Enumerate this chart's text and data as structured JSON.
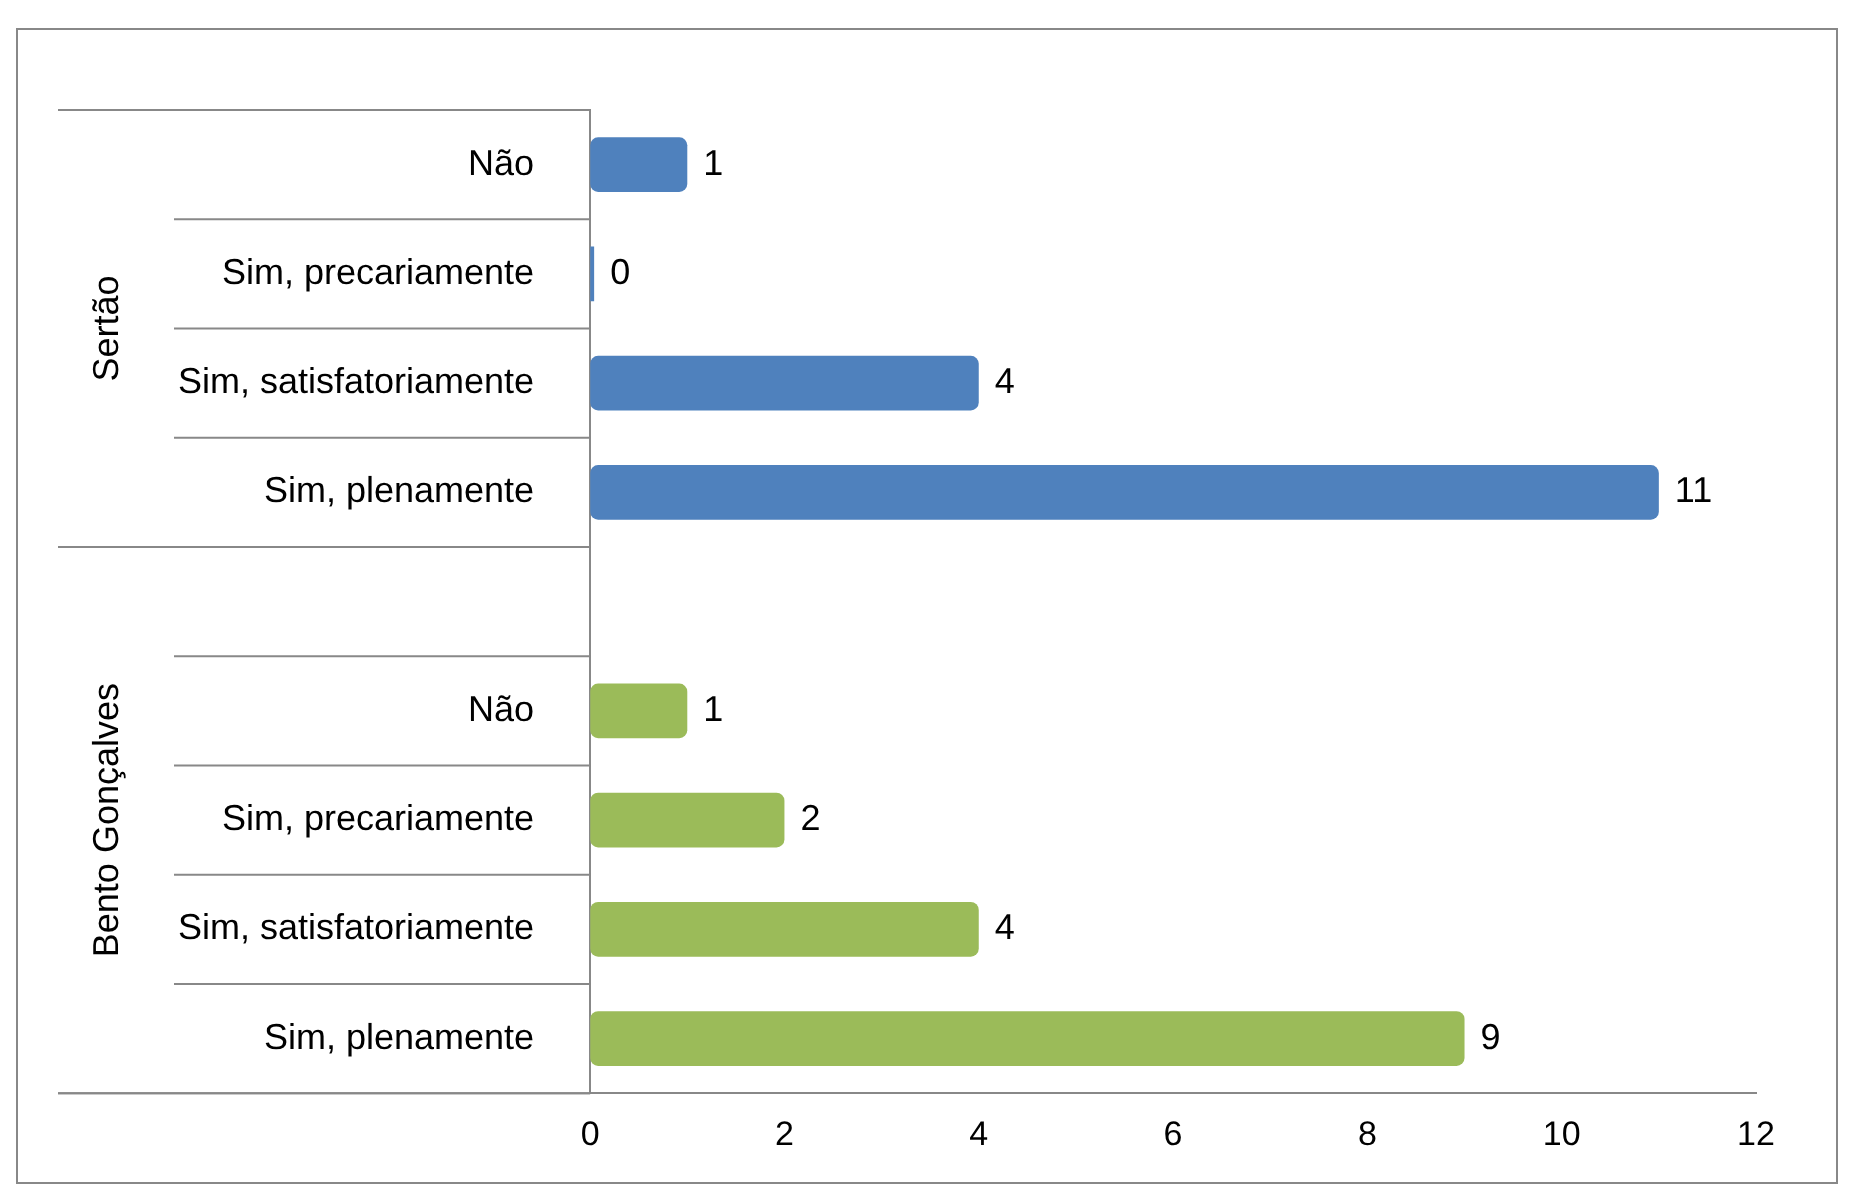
{
  "chart_data": {
    "type": "bar",
    "orientation": "horizontal",
    "stacked": true,
    "categories": [
      "Não",
      "Sim, precariamente",
      "Sim, satisfatoriamente",
      "Sim, plenamente",
      null,
      "Não",
      "Sim, precariamente",
      "Sim, satisfatoriamente",
      "Sim, plenamente"
    ],
    "series": [
      {
        "color": "#4f81bd",
        "values": [
          1,
          0,
          4,
          11,
          null,
          null,
          null,
          null,
          null
        ]
      },
      {
        "color": "#9bbb59",
        "values": [
          null,
          null,
          null,
          null,
          null,
          1,
          2,
          4,
          9
        ]
      }
    ],
    "annotations": [
      "Sertão",
      "Bento Gonçalves"
    ],
    "xlim": [
      0,
      12
    ],
    "xticks": [
      0,
      2,
      4,
      6,
      8,
      10,
      12
    ],
    "grid": false,
    "legend": false,
    "data_labels": true
  }
}
